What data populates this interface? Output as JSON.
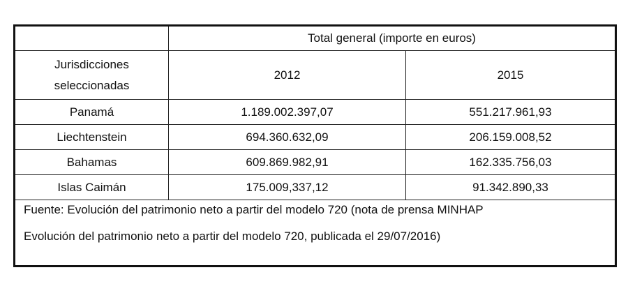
{
  "table": {
    "header": "Total general (importe en euros)",
    "columns": [
      "Jurisdicciones seleccionadas",
      "2012",
      "2015"
    ],
    "rows": [
      [
        "Panamá",
        "1.189.002.397,07",
        "551.217.961,93"
      ],
      [
        "Liechtenstein",
        "694.360.632,09",
        "206.159.008,52"
      ],
      [
        "Bahamas",
        "609.869.982,91",
        "162.335.756,03"
      ],
      [
        "Islas Caimán",
        "175.009,337,12",
        "91.342.890,33"
      ]
    ],
    "source": [
      "Fuente: Evolución del patrimonio neto a partir del modelo 720 (nota de prensa MINHAP",
      "Evolución del patrimonio neto a partir del modelo 720, publicada el 29/07/2016)"
    ]
  }
}
